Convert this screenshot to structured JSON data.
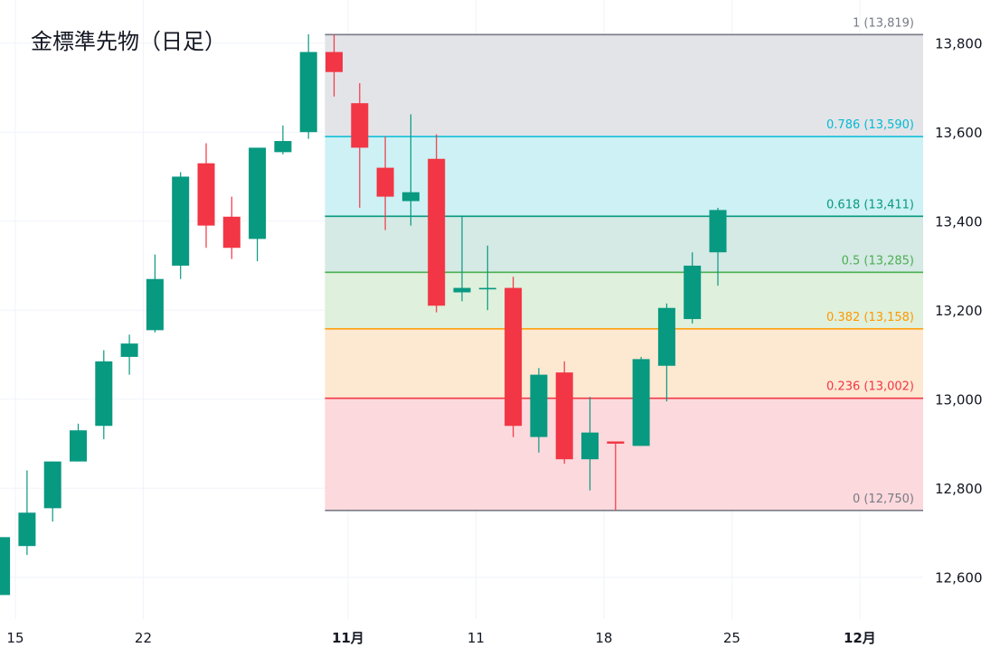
{
  "title": "金標準先物（日足）",
  "colors": {
    "up": "#089981",
    "down": "#f23645",
    "grid": "#f0f3fa",
    "text": "#131722"
  },
  "chart_data": {
    "type": "candlestick",
    "title": "金標準先物（日足）",
    "ylim": [
      12520,
      13860
    ],
    "y_ticks": [
      {
        "value": 12600,
        "label": "12,600"
      },
      {
        "value": 12800,
        "label": "12,800"
      },
      {
        "value": 13000,
        "label": "13,000"
      },
      {
        "value": 13200,
        "label": "13,200"
      },
      {
        "value": 13400,
        "label": "13,400"
      },
      {
        "value": 13600,
        "label": "13,600"
      },
      {
        "value": 13800,
        "label": "13,800"
      }
    ],
    "x_ticks": [
      {
        "index": 0.6,
        "label": "15",
        "bold": false
      },
      {
        "index": 5.6,
        "label": "22",
        "bold": false
      },
      {
        "index": 13.6,
        "label": "11月",
        "bold": true
      },
      {
        "index": 18.6,
        "label": "11",
        "bold": false
      },
      {
        "index": 23.6,
        "label": "18",
        "bold": false
      },
      {
        "index": 28.6,
        "label": "25",
        "bold": false
      },
      {
        "index": 33.6,
        "label": "12月",
        "bold": true
      }
    ],
    "x_range": [
      0,
      36
    ],
    "candles": [
      {
        "o": 12560,
        "h": 12690,
        "l": 12560,
        "c": 12690
      },
      {
        "o": 12670,
        "h": 12840,
        "l": 12650,
        "c": 12745
      },
      {
        "o": 12755,
        "h": 12860,
        "l": 12725,
        "c": 12860
      },
      {
        "o": 12860,
        "h": 12945,
        "l": 12860,
        "c": 12930
      },
      {
        "o": 12940,
        "h": 13110,
        "l": 12910,
        "c": 13085
      },
      {
        "o": 13095,
        "h": 13145,
        "l": 13055,
        "c": 13125
      },
      {
        "o": 13155,
        "h": 13325,
        "l": 13150,
        "c": 13270
      },
      {
        "o": 13300,
        "h": 13510,
        "l": 13270,
        "c": 13500
      },
      {
        "o": 13530,
        "h": 13575,
        "l": 13340,
        "c": 13390
      },
      {
        "o": 13410,
        "h": 13455,
        "l": 13315,
        "c": 13340
      },
      {
        "o": 13360,
        "h": 13565,
        "l": 13310,
        "c": 13565
      },
      {
        "o": 13555,
        "h": 13615,
        "l": 13550,
        "c": 13580
      },
      {
        "o": 13600,
        "h": 13820,
        "l": 13585,
        "c": 13780
      },
      {
        "o": 13780,
        "h": 13819,
        "l": 13680,
        "c": 13735
      },
      {
        "o": 13665,
        "h": 13710,
        "l": 13430,
        "c": 13565
      },
      {
        "o": 13520,
        "h": 13590,
        "l": 13380,
        "c": 13455
      },
      {
        "o": 13445,
        "h": 13640,
        "l": 13390,
        "c": 13465
      },
      {
        "o": 13540,
        "h": 13595,
        "l": 13195,
        "c": 13210
      },
      {
        "o": 13240,
        "h": 13410,
        "l": 13220,
        "c": 13250
      },
      {
        "o": 13250,
        "h": 13345,
        "l": 13200,
        "c": 13250
      },
      {
        "o": 13250,
        "h": 13275,
        "l": 12915,
        "c": 12940
      },
      {
        "o": 12915,
        "h": 13070,
        "l": 12880,
        "c": 13055
      },
      {
        "o": 13060,
        "h": 13085,
        "l": 12855,
        "c": 12865
      },
      {
        "o": 12865,
        "h": 13005,
        "l": 12795,
        "c": 12925
      },
      {
        "o": 12905,
        "h": 12905,
        "l": 12750,
        "c": 12900
      },
      {
        "o": 12895,
        "h": 13095,
        "l": 12895,
        "c": 13090
      },
      {
        "o": 13075,
        "h": 13215,
        "l": 12995,
        "c": 13205
      },
      {
        "o": 13180,
        "h": 13330,
        "l": 13170,
        "c": 13300
      },
      {
        "o": 13330,
        "h": 13430,
        "l": 13255,
        "c": 13425
      }
    ],
    "fibonacci": {
      "start_index": 12.7,
      "end_index": 36,
      "levels": [
        {
          "ratio": "1",
          "price": 13819,
          "label": "1 (13,819)",
          "line": "#787b86",
          "fill": "#e3e4e8",
          "text": "#787b86"
        },
        {
          "ratio": "0.786",
          "price": 13590,
          "label": "0.786 (13,590)",
          "line": "#00bcd4",
          "fill": "#cdf1f4",
          "text": "#00bcd4"
        },
        {
          "ratio": "0.618",
          "price": 13411,
          "label": "0.618 (13,411)",
          "line": "#089981",
          "fill": "#d5e9e5",
          "text": "#089981"
        },
        {
          "ratio": "0.5",
          "price": 13285,
          "label": "0.5 (13,285)",
          "line": "#4caf50",
          "fill": "#dff0dc",
          "text": "#4caf50"
        },
        {
          "ratio": "0.382",
          "price": 13158,
          "label": "0.382 (13,158)",
          "line": "#ff9800",
          "fill": "#fde8d2",
          "text": "#ff9800"
        },
        {
          "ratio": "0.236",
          "price": 13002,
          "label": "0.236 (13,002)",
          "line": "#f23645",
          "fill": "#fcd9dc",
          "text": "#f23645"
        },
        {
          "ratio": "0",
          "price": 12750,
          "label": "0 (12,750)",
          "line": "#787b86",
          "fill": null,
          "text": "#787b86"
        }
      ]
    }
  }
}
